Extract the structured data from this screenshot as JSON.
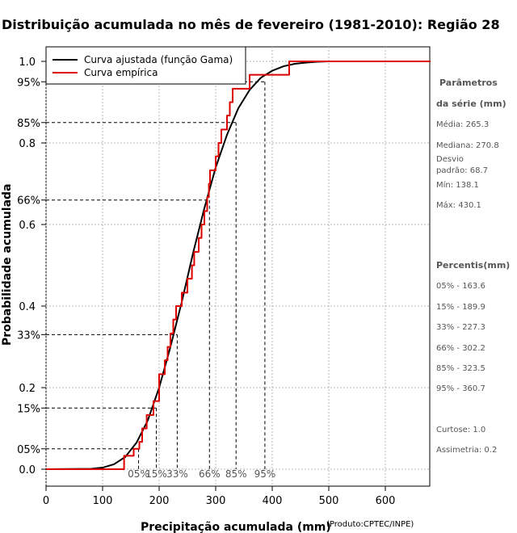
{
  "chart_data": {
    "type": "line",
    "title": "Distribuição acumulada no mês de fevereiro (1981-2010): Região 28",
    "xlabel": "Precipitação acumulada (mm)",
    "ylabel": "Probabilidade acumulada",
    "credit": "(Produto:CPTEC/INPE)",
    "xlim": [
      0,
      680
    ],
    "ylim": [
      -0.05,
      1.05
    ],
    "x_ticks": [
      "0",
      "100",
      "200",
      "300",
      "400",
      "500",
      "600"
    ],
    "x_tick_values": [
      0,
      100,
      200,
      300,
      400,
      500,
      600
    ],
    "y_ticks": [
      "0.0",
      "0.2",
      "0.4",
      "0.6",
      "0.8",
      "1.0"
    ],
    "y_tick_values": [
      0.0,
      0.2,
      0.4,
      0.6,
      0.8,
      1.0
    ],
    "grid": true,
    "legend_position": "top-left",
    "series": [
      {
        "name": "Curva ajustada (função Gama)",
        "color": "#000000",
        "kind": "smooth",
        "x": [
          0,
          80,
          100,
          120,
          140,
          160,
          180,
          200,
          220,
          240,
          260,
          280,
          300,
          320,
          340,
          360,
          380,
          400,
          420,
          440,
          460,
          480,
          500,
          550
        ],
        "y": [
          0.0,
          0.001,
          0.004,
          0.012,
          0.03,
          0.065,
          0.12,
          0.2,
          0.3,
          0.41,
          0.53,
          0.64,
          0.74,
          0.82,
          0.885,
          0.93,
          0.96,
          0.977,
          0.988,
          0.994,
          0.997,
          0.999,
          1.0,
          1.0
        ]
      },
      {
        "name": "Curva empírica",
        "color": "#dd0000",
        "kind": "step",
        "x": [
          0,
          138,
          155,
          165,
          170,
          178,
          190,
          200,
          210,
          215,
          220,
          225,
          230,
          240,
          250,
          258,
          262,
          270,
          275,
          280,
          285,
          288,
          290,
          300,
          305,
          310,
          320,
          325,
          330,
          335,
          360,
          385,
          400,
          430,
          680
        ],
        "y": [
          0.0,
          0.033,
          0.05,
          0.067,
          0.1,
          0.133,
          0.167,
          0.233,
          0.267,
          0.3,
          0.333,
          0.367,
          0.4,
          0.433,
          0.467,
          0.5,
          0.533,
          0.567,
          0.6,
          0.633,
          0.667,
          0.7,
          0.733,
          0.767,
          0.8,
          0.833,
          0.867,
          0.9,
          0.933,
          0.933,
          0.967,
          0.967,
          0.967,
          1.0,
          1.0
        ]
      }
    ],
    "percentiles": [
      {
        "label": "05%",
        "x": 163.6,
        "y": 0.05
      },
      {
        "label": "15%",
        "x": 189.9,
        "y": 0.15
      },
      {
        "label": "33%",
        "x": 227.3,
        "y": 0.33
      },
      {
        "label": "66%",
        "x": 302.2,
        "y": 0.66
      },
      {
        "label": "85%",
        "x": 323.5,
        "y": 0.85
      },
      {
        "label": "95%",
        "x": 360.7,
        "y": 0.95
      }
    ],
    "percentile_guides": [
      {
        "label": "05%",
        "x": 163.6,
        "y": 0.05
      },
      {
        "label": "15%",
        "x": 195,
        "y": 0.15
      },
      {
        "label": "33%",
        "x": 232,
        "y": 0.33
      },
      {
        "label": "66%",
        "x": 289,
        "y": 0.66
      },
      {
        "label": "85%",
        "x": 336,
        "y": 0.85
      },
      {
        "label": "95%",
        "x": 387,
        "y": 0.95
      }
    ]
  },
  "side_panel": {
    "params_heading_1": "Parâmetros",
    "params_heading_2": "da série (mm)",
    "media": "Média: 265.3",
    "mediana": "Mediana: 270.8",
    "desvio_1": "Desvio",
    "desvio_2": "padrão: 68.7",
    "min": "Mín: 138.1",
    "max": "Máx: 430.1",
    "percentis_heading": "Percentis(mm)",
    "p05": "05% - 163.6",
    "p15": "15% - 189.9",
    "p33": "33% - 227.3",
    "p66": "66% - 302.2",
    "p85": "85% - 323.5",
    "p95": "95% - 360.7",
    "curtose": "Curtose: 1.0",
    "assimetria": "Assimetria: 0.2"
  }
}
